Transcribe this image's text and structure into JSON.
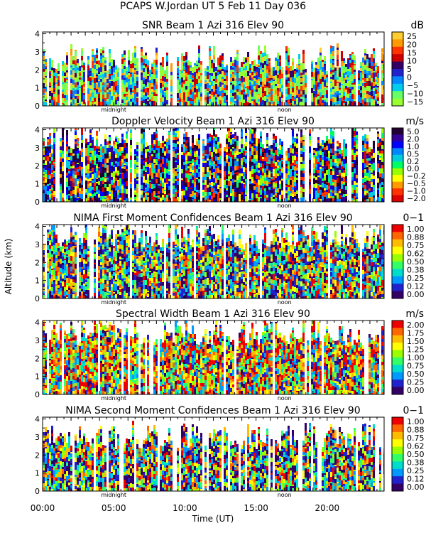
{
  "figure": {
    "title": "PCAPS W.Jordan UT    5 Feb 11 Day 036",
    "ylabel": "Altitude (km)",
    "xlabel": "Time (UT)",
    "x_ticks": [
      "00:00",
      "05:00",
      "10:00",
      "15:00",
      "20:00"
    ],
    "x_tick_hours": [
      0,
      5,
      10,
      15,
      20
    ],
    "x_range_hours": [
      0,
      24
    ],
    "midnight_label": "midnight",
    "noon_label": "noon",
    "midnight_hour": 5,
    "noon_hour": 17
  },
  "chart_data": [
    {
      "type": "heatmap",
      "title": "SNR Beam 1 Azi 316 Elev 90",
      "units": "dB",
      "y_ticks": [
        "0",
        "1",
        "2",
        "3",
        "4"
      ],
      "ylim": [
        0,
        4.1
      ],
      "colorbar_labels": [
        "25",
        "20",
        "15",
        "10",
        "5",
        "0",
        "−5",
        "−10",
        "−15"
      ],
      "colors": [
        "#ffcc33",
        "#ff9900",
        "#ff3300",
        "#cc0000",
        "#330066",
        "#2222cc",
        "#0088ff",
        "#00ccee",
        "#66ff66",
        "#99ff33"
      ],
      "echo_top_km": 2.8
    },
    {
      "type": "heatmap",
      "title": "Doppler Velocity Beam 1 Azi 316 Elev 90",
      "units": "m/s",
      "y_ticks": [
        "0",
        "1",
        "2",
        "3",
        "4"
      ],
      "ylim": [
        0,
        4.1
      ],
      "colorbar_labels": [
        "5.0",
        "2.0",
        "1.0",
        "0.5",
        "0.2",
        "0.0",
        "−0.2",
        "−0.5",
        "−1.0",
        "−2.0"
      ],
      "colors": [
        "#220033",
        "#330099",
        "#0000ff",
        "#0088ff",
        "#00ccdd",
        "#00ff66",
        "#99ff00",
        "#ffff00",
        "#ff9900",
        "#ff3300",
        "#dd0000"
      ],
      "echo_top_km": 3.7
    },
    {
      "type": "heatmap",
      "title": "NIMA First Moment Confidences Beam 1 Azi 316 Elev 90",
      "units": "0−1",
      "y_ticks": [
        "0",
        "1",
        "2",
        "3",
        "4"
      ],
      "ylim": [
        0,
        4.1
      ],
      "colorbar_labels": [
        "1.00",
        "0.88",
        "0.75",
        "0.62",
        "0.50",
        "0.38",
        "0.25",
        "0.12",
        "0.00"
      ],
      "colors": [
        "#ee0000",
        "#ff6600",
        "#ffbb00",
        "#ffff00",
        "#99ff00",
        "#33ff66",
        "#00ddcc",
        "#0099ff",
        "#2222cc",
        "#330066"
      ],
      "echo_top_km": 3.6
    },
    {
      "type": "heatmap",
      "title": "Spectral Width Beam 1 Azi 316 Elev 90",
      "units": "m/s",
      "y_ticks": [
        "0",
        "1",
        "2",
        "3",
        "4"
      ],
      "ylim": [
        0,
        4.1
      ],
      "colorbar_labels": [
        "2.00",
        "1.75",
        "1.50",
        "1.25",
        "1.00",
        "0.75",
        "0.50",
        "0.25",
        "0.00"
      ],
      "colors": [
        "#ee0000",
        "#ff6600",
        "#ffbb00",
        "#ffff00",
        "#99ff00",
        "#33ff66",
        "#00ddcc",
        "#0099ff",
        "#2222cc",
        "#330066"
      ],
      "echo_top_km": 3.6
    },
    {
      "type": "heatmap",
      "title": "NIMA Second Moment Confidences Beam 1 Azi 316 Elev 90",
      "units": "0−1",
      "y_ticks": [
        "0",
        "1",
        "2",
        "3",
        "4"
      ],
      "ylim": [
        0,
        4.1
      ],
      "colorbar_labels": [
        "1.00",
        "0.88",
        "0.75",
        "0.62",
        "0.50",
        "0.38",
        "0.25",
        "0.12",
        "0.00"
      ],
      "colors": [
        "#ee0000",
        "#ff6600",
        "#ffbb00",
        "#ffff00",
        "#99ff00",
        "#33ff66",
        "#00ddcc",
        "#0099ff",
        "#2222cc",
        "#330066"
      ],
      "echo_top_km": 3.2
    }
  ]
}
